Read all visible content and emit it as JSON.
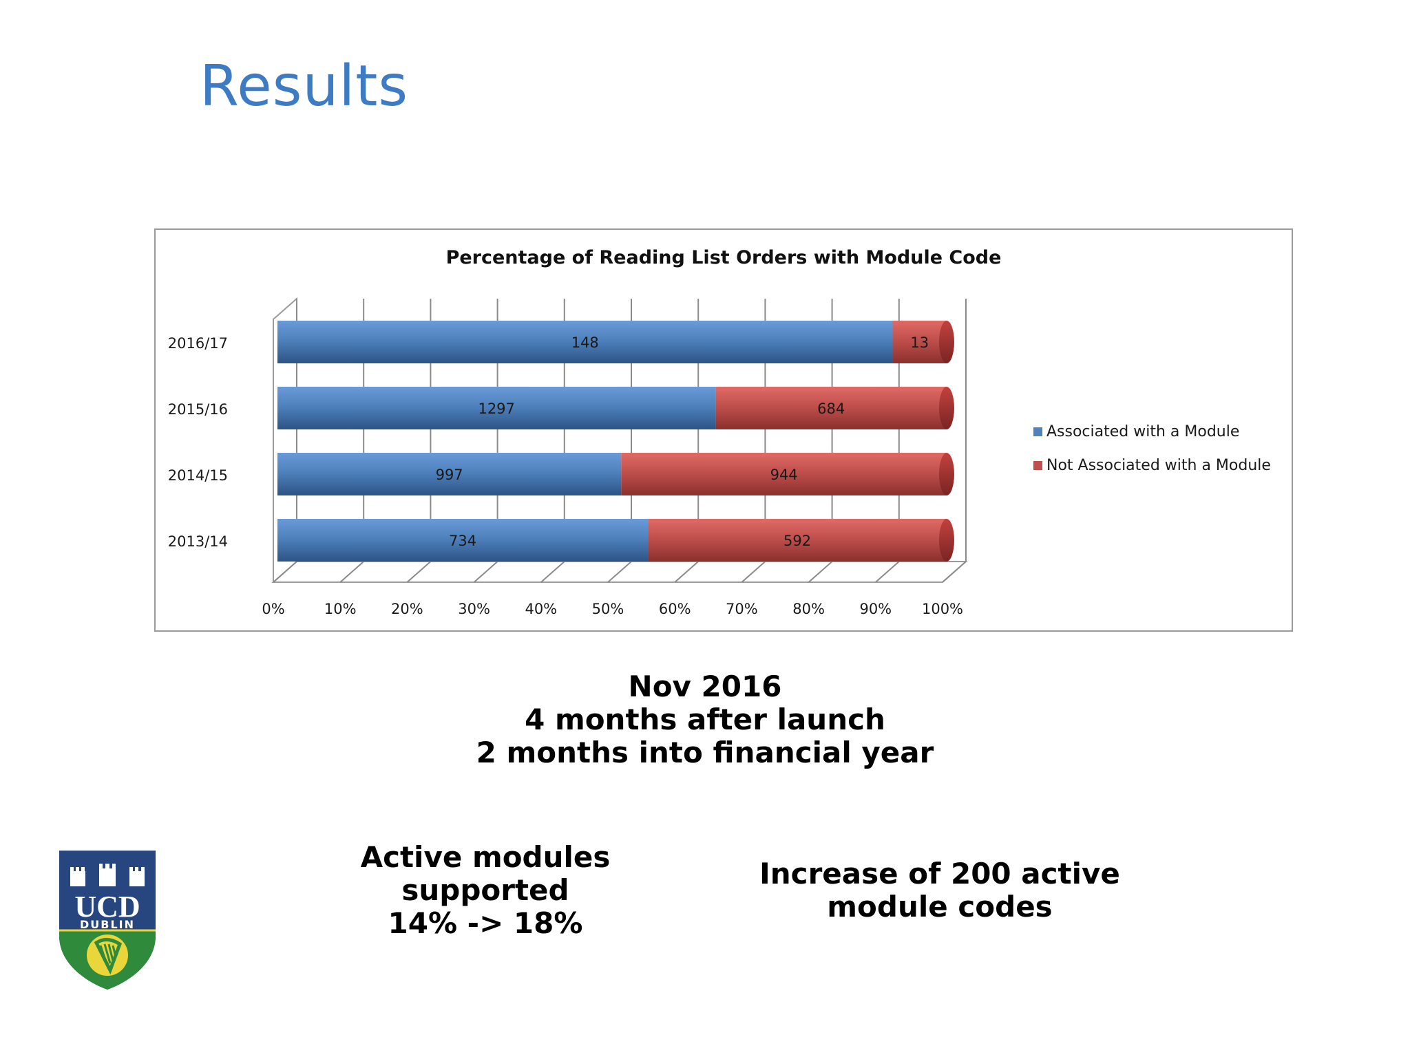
{
  "slide": {
    "title": "Results"
  },
  "chart_data": {
    "type": "bar",
    "orientation": "horizontal",
    "stacked": "percent",
    "title": "Percentage of Reading List Orders with Module Code",
    "categories": [
      "2016/17",
      "2015/16",
      "2014/15",
      "2013/14"
    ],
    "series": [
      {
        "name": "Associated with a Module",
        "values": [
          148,
          1297,
          997,
          734
        ],
        "color": "#4f81bd"
      },
      {
        "name": "Not Associated with a Module",
        "values": [
          13,
          684,
          944,
          592
        ],
        "color": "#c0504d"
      }
    ],
    "x_ticks": [
      "0%",
      "10%",
      "20%",
      "30%",
      "40%",
      "50%",
      "60%",
      "70%",
      "80%",
      "90%",
      "100%"
    ],
    "xlim": [
      0,
      100
    ],
    "grid": true,
    "legend": "right"
  },
  "caption": {
    "line1": "Nov 2016",
    "line2": "4 months after launch",
    "line3": "2 months into financial year"
  },
  "stats": {
    "left": {
      "line1": "Active modules",
      "line2": "supported",
      "line3": "14% -> 18%"
    },
    "right": {
      "line1": "Increase of 200 active",
      "line2": "module codes"
    }
  },
  "logo": {
    "text_main": "UCD",
    "text_sub": "DUBLIN"
  },
  "colors": {
    "title": "#3d7cc4",
    "shield_blue": "#27467f",
    "shield_green": "#2f8a3c",
    "shield_yellow": "#e9d63a"
  }
}
